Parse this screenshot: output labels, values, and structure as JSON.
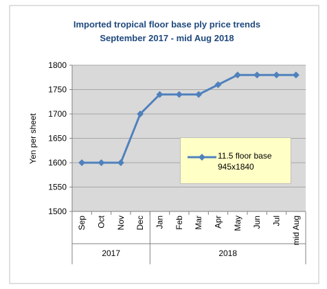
{
  "chart_data": {
    "type": "line",
    "title": "Imported tropical floor base ply price trends",
    "subtitle": "September 2017 - mid Aug 2018",
    "y_label": "Yen per sheet",
    "categories": [
      "Sep",
      "Oct",
      "Nov",
      "Dec",
      "Jan",
      "Feb",
      "Mar",
      "Apr",
      "May",
      "Jun",
      "Jul",
      "mid Aug"
    ],
    "groups": [
      {
        "label": "2017",
        "span": 4
      },
      {
        "label": "2018",
        "span": 8
      }
    ],
    "series": [
      {
        "name": "11.5 floor base 945x1840",
        "color": "#4f81bd",
        "values": [
          1600,
          1600,
          1600,
          1700,
          1740,
          1740,
          1740,
          1760,
          1780,
          1780,
          1780,
          1780
        ]
      }
    ],
    "ylim": [
      1500,
      1800
    ],
    "yticks": [
      1500,
      1550,
      1600,
      1650,
      1700,
      1750,
      1800
    ],
    "grid": true,
    "legend": "inside"
  }
}
